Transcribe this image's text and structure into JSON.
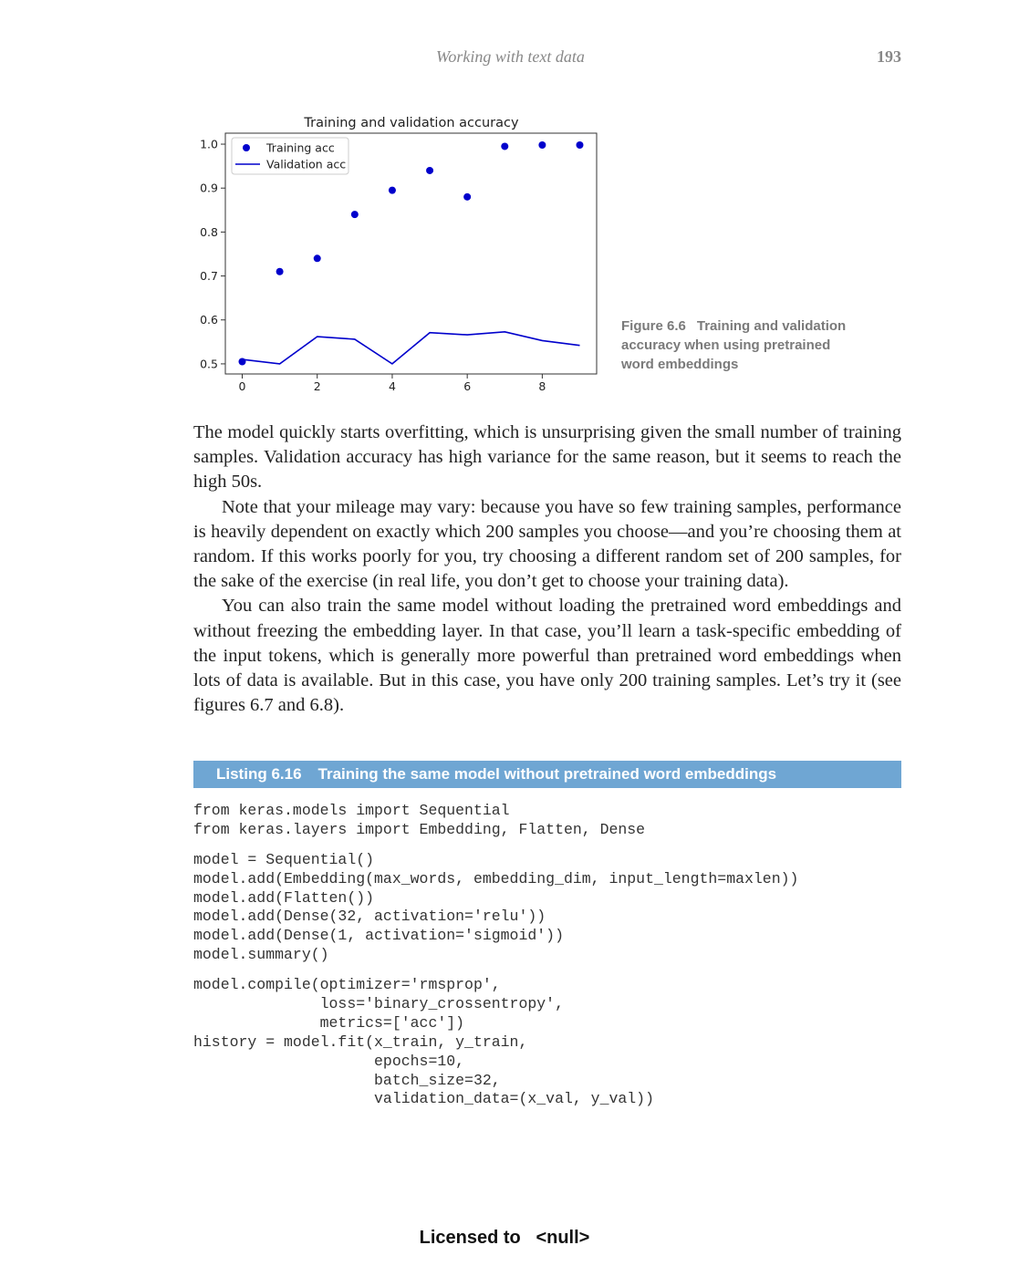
{
  "header": {
    "running_title": "Working with text data",
    "page_number": "193"
  },
  "chart_data": {
    "type": "scatter",
    "title": "Training and validation accuracy",
    "xlabel": "",
    "ylabel": "",
    "xlim": [
      -0.45,
      9.45
    ],
    "ylim": [
      0.477,
      1.025
    ],
    "x_ticks": [
      "0",
      "2",
      "4",
      "6",
      "8"
    ],
    "y_ticks": [
      "0.5",
      "0.6",
      "0.7",
      "0.8",
      "0.9",
      "1.0"
    ],
    "grid": false,
    "legend_position": "top-left",
    "color": "#0000cc",
    "series": [
      {
        "name": "Training acc",
        "style": "points",
        "x": [
          0,
          1,
          2,
          3,
          4,
          5,
          6,
          7,
          8,
          9
        ],
        "y": [
          0.505,
          0.71,
          0.74,
          0.84,
          0.895,
          0.94,
          0.88,
          0.995,
          0.998,
          0.998
        ]
      },
      {
        "name": "Validation acc",
        "style": "line",
        "x": [
          0,
          1,
          2,
          3,
          4,
          5,
          6,
          7,
          8,
          9
        ],
        "y": [
          0.51,
          0.5,
          0.562,
          0.556,
          0.5,
          0.571,
          0.566,
          0.573,
          0.553,
          0.542
        ]
      }
    ]
  },
  "figure": {
    "label": "Figure 6.6",
    "caption": "Training and validation accuracy when using pretrained word embeddings"
  },
  "body": {
    "paragraphs": [
      "The model quickly starts overfitting, which is unsurprising given the small number of training samples. Validation accuracy has high variance for the same reason, but it seems to reach the high 50s.",
      "Note that your mileage may vary: because you have so few training samples, performance is heavily dependent on exactly which 200 samples you choose—and you’re choosing them at random. If this works poorly for you, try choosing a different random set of 200 samples, for the sake of the exercise (in real life, you don’t get to choose your training data).",
      "You can also train the same model without loading the pretrained word embeddings and without freezing the embedding layer. In that case, you’ll learn a task-specific embedding of the input tokens, which is generally more powerful than pretrained word embeddings when lots of data is available. But in this case, you have only 200 training samples. Let’s try it (see figures 6.7 and 6.8)."
    ]
  },
  "listing": {
    "number": "Listing 6.16",
    "title": "Training the same model without pretrained word embeddings"
  },
  "code": {
    "lines": [
      "from keras.models import Sequential",
      "from keras.layers import Embedding, Flatten, Dense",
      "model = Sequential()",
      "model.add(Embedding(max_words, embedding_dim, input_length=maxlen))",
      "model.add(Flatten())",
      "model.add(Dense(32, activation='relu'))",
      "model.add(Dense(1, activation='sigmoid'))",
      "model.summary()",
      "model.compile(optimizer='rmsprop',",
      "              loss='binary_crossentropy',",
      "              metrics=['acc'])",
      "history = model.fit(x_train, y_train,",
      "                    epochs=10,",
      "                    batch_size=32,",
      "                    validation_data=(x_val, y_val))"
    ]
  },
  "footer": {
    "text": "Licensed to   <null>"
  }
}
